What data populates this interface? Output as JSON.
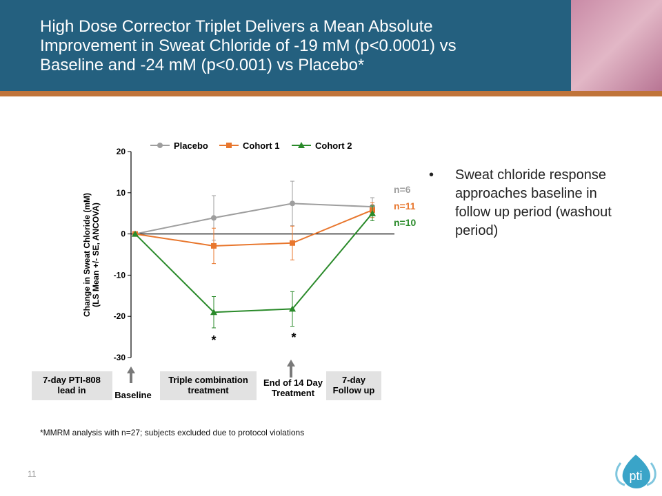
{
  "chart_data": {
    "type": "line",
    "title": [
      "High Dose Corrector Triplet Delivers a Mean Absolute",
      "Improvement in Sweat Chloride of -19 mM (p<0.0001) vs",
      "Baseline and -24 mM (p<0.001) vs Placebo*"
    ],
    "y_label": [
      "Change in Sweat Chloride (mM)",
      "(LS Mean +/- SE, ANCOVA)"
    ],
    "categories": [
      null,
      null,
      null,
      null
    ],
    "series": [
      {
        "name": "Placebo",
        "color": "#9e9e9e",
        "marker": "circle",
        "values": [
          0,
          3.9,
          7.4,
          6.6
        ],
        "errors": [
          0,
          5.4,
          5.4,
          2.2
        ]
      },
      {
        "name": "Cohort 1",
        "color": "#e8772e",
        "marker": "square",
        "values": [
          0,
          -2.9,
          -2.2,
          5.8
        ],
        "errors": [
          0,
          4.3,
          4.1,
          1.8
        ]
      },
      {
        "name": "Cohort 2",
        "color": "#2a8a2a",
        "marker": "triangle",
        "values": [
          0,
          -19.0,
          -18.2,
          5.0
        ],
        "errors": [
          0,
          3.8,
          4.2,
          1.8
        ]
      }
    ],
    "ylim": [
      -30,
      20
    ],
    "yticks": [
      -30,
      -20,
      -10,
      0,
      10,
      20
    ],
    "n_labels": [
      {
        "text": "n=6",
        "color": "#9e9e9e"
      },
      {
        "text": "n=11",
        "color": "#e8772e"
      },
      {
        "text": "n=10",
        "color": "#2a8a2a"
      }
    ],
    "significance": [
      "*",
      "*"
    ],
    "phases": [
      {
        "lines": [
          "7-day PTI-808",
          "lead in"
        ],
        "boxed": true
      },
      {
        "lines": [
          "Baseline"
        ],
        "boxed": false
      },
      {
        "lines": [
          "Triple combination",
          "treatment"
        ],
        "boxed": true
      },
      {
        "lines": [
          "End of 14 Day",
          "Treatment"
        ],
        "boxed": false
      },
      {
        "lines": [
          "7-day",
          "Follow up"
        ],
        "boxed": true
      }
    ]
  },
  "bullet": "Sweat chloride response approaches baseline in follow up period (washout period)",
  "footnote": "*MMRM analysis with n=27; subjects excluded due to protocol violations",
  "page_number": "11",
  "logo": "pti"
}
